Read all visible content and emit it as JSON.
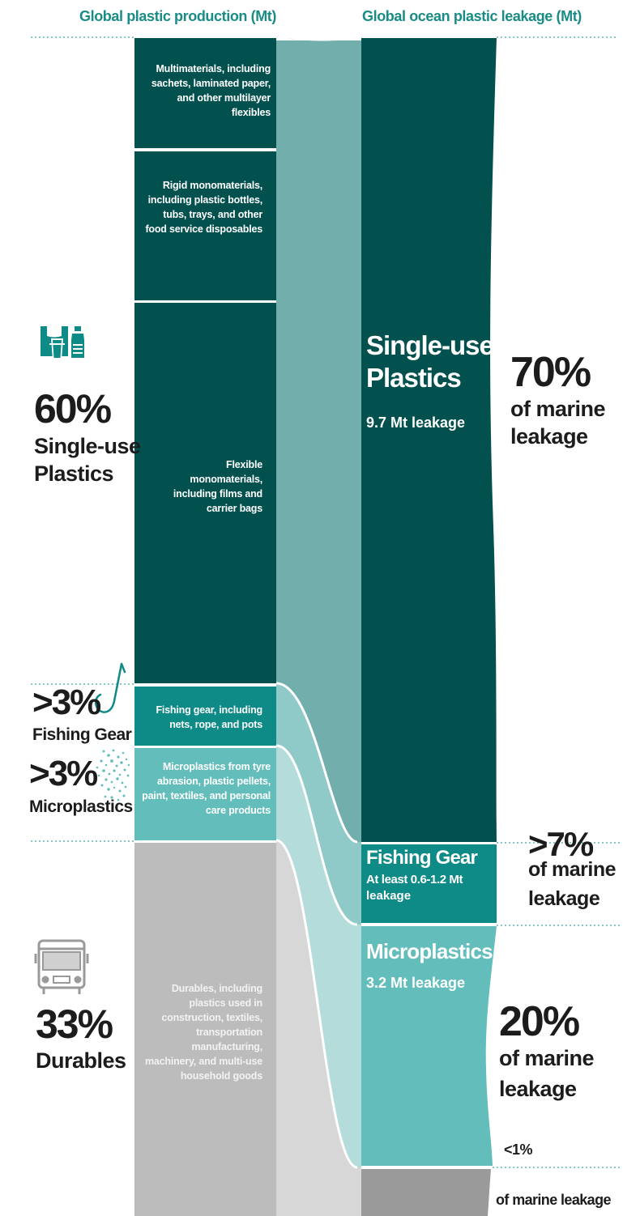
{
  "header": {
    "left": "Global plastic production (Mt)",
    "right": "Global ocean plastic leakage (Mt)"
  },
  "production": {
    "multimaterials": "Multimaterials, including sachets, laminated paper, and other multilayer flexibles",
    "rigid": "Rigid monomaterials, including plastic bottles, tubs, trays, and other food service disposables",
    "flexible": "Flexible monomaterials, including films and carrier bags",
    "fishing_gear": "Fishing gear, including nets, rope, and pots",
    "microplastics": "Microplastics from tyre abrasion, plastic pellets, paint, textiles, and personal care products",
    "durables": "Durables, including plastics used in construction, textiles, transportation manufacturing, machinery, and multi-use household goods"
  },
  "left_labels": {
    "single_use_pct": "60%",
    "single_use_name_1": "Single-use",
    "single_use_name_2": "Plastics",
    "fishing_pct": ">3%",
    "fishing_name": "Fishing Gear",
    "micro_pct": ">3%",
    "micro_name": "Microplastics",
    "durables_pct": "33%",
    "durables_name": "Durables"
  },
  "leakage": {
    "single_use_title_1": "Single-use",
    "single_use_title_2": "Plastics",
    "single_use_amount": "9.7 Mt leakage",
    "fishing_title": "Fishing Gear",
    "fishing_amount_1": "At least 0.6-1.2 Mt",
    "fishing_amount_2": "leakage",
    "micro_title": "Microplastics",
    "micro_amount": "3.2 Mt leakage"
  },
  "right_labels": {
    "single_use_pct": "70%",
    "single_use_text_1": "of marine",
    "single_use_text_2": "leakage",
    "fishing_pct": ">7%",
    "fishing_text_1": "of marine",
    "fishing_text_2": "leakage",
    "micro_pct": "20%",
    "micro_text_1": "of marine",
    "micro_text_2": "leakage",
    "durables_pct": "<1%",
    "durables_text": "of marine leakage"
  },
  "colors": {
    "single_use_dark": "#03514f",
    "single_use_flow": "#72aeac",
    "fishing": "#0e8a87",
    "fishing_flow": "#8fcac8",
    "micro": "#63bdba",
    "micro_flow": "#b3dcda",
    "durables": "#bcbcbc",
    "durables_flow": "#d7d7d7",
    "header_teal": "#1a8c86"
  }
}
